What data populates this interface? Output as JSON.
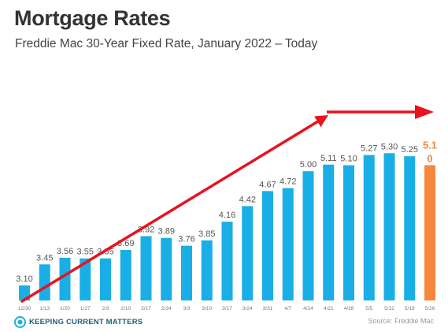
{
  "header": {
    "title": "Mortgage Rates",
    "subtitle": "Freddie Mac 30-Year Fixed Rate, January 2022 – Today"
  },
  "footer": {
    "logo_text": "Keeping Current Matters",
    "source": "Source: Freddie Mac"
  },
  "colors": {
    "bar": "#1aaee6",
    "highlight_bar": "#f7873a",
    "arrow": "#e8131f",
    "label": "#555555",
    "logo": "#1d5e7a"
  },
  "chart_data": {
    "type": "bar",
    "categories": [
      "12/30",
      "1/13",
      "1/20",
      "1/27",
      "2/3",
      "2/10",
      "2/17",
      "2/24",
      "3/3",
      "3/10",
      "3/17",
      "3/24",
      "3/31",
      "4/7",
      "4/14",
      "4/21",
      "4/28",
      "5/5",
      "5/12",
      "5/19",
      "5/26"
    ],
    "values": [
      3.1,
      3.45,
      3.56,
      3.55,
      3.55,
      3.69,
      3.92,
      3.89,
      3.76,
      3.85,
      4.16,
      4.42,
      4.67,
      4.72,
      5.0,
      5.11,
      5.1,
      5.27,
      5.3,
      5.25,
      5.1
    ],
    "labels": [
      "3.10",
      "3.45",
      "3.56",
      "3.55",
      "3.55",
      "3.69",
      "3.92",
      "3.89",
      "3.76",
      "3.85",
      "4.16",
      "4.42",
      "4.67",
      "4.72",
      "5.00",
      "5.11",
      "5.10",
      "5.27",
      "5.30",
      "5.25",
      "5.10"
    ],
    "highlight_index": 20,
    "ylim": [
      2.85,
      5.75
    ],
    "grid": false,
    "legend": "none",
    "annotations": [
      "trend-arrow"
    ]
  }
}
